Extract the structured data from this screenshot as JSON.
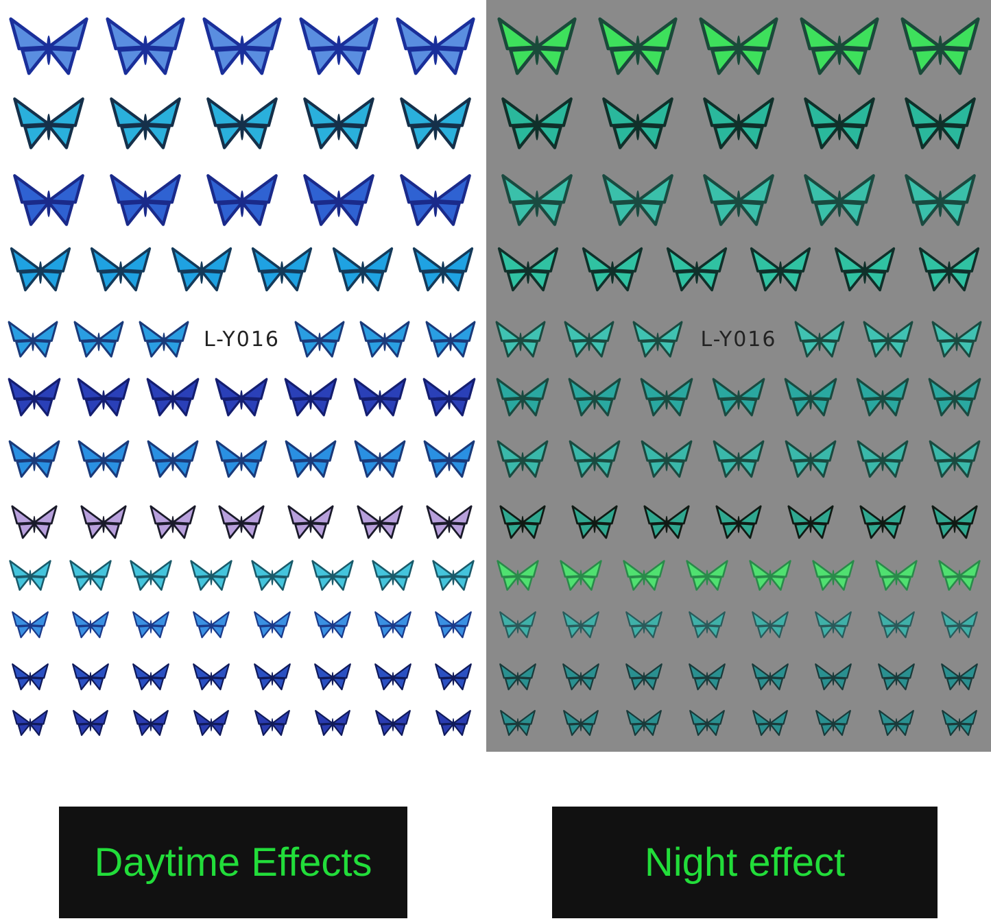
{
  "product_code": "L-Y016",
  "captions": {
    "day": "Daytime Effects",
    "night": "Night effect"
  },
  "colors": {
    "night_background": "#8a8a8a",
    "caption_background": "#111111",
    "caption_text": "#22dd3a"
  },
  "sheets": {
    "day": {
      "rows": [
        {
          "count": 5,
          "color": "#5a8ee0",
          "edge": "#1a2f9a"
        },
        {
          "count": 5,
          "color": "#2ab0dc",
          "edge": "#15304a"
        },
        {
          "count": 5,
          "color": "#2f62d2",
          "edge": "#1a2a8a"
        },
        {
          "count": 6,
          "color": "#1fa2e2",
          "edge": "#143a5a"
        },
        {
          "count": 6,
          "color": "#2a9ee2",
          "edge": "#1a3a7a",
          "has_code_label": true
        },
        {
          "count": 7,
          "color": "#2a40b8",
          "edge": "#141e70"
        },
        {
          "count": 7,
          "color": "#2a90e2",
          "edge": "#1a3a7a"
        },
        {
          "count": 7,
          "color": "#b8a0dc",
          "edge": "#1a1a2a"
        },
        {
          "count": 8,
          "color": "#44c4dc",
          "edge": "#1a5a6a"
        },
        {
          "count": 8,
          "color": "#3a90e2",
          "edge": "#1a3a8a"
        },
        {
          "count": 8,
          "color": "#2a50c2",
          "edge": "#101a5a"
        },
        {
          "count": 8,
          "color": "#2a3cb0",
          "edge": "#101a5a"
        }
      ]
    },
    "night": {
      "rows": [
        {
          "count": 5,
          "color": "#3ee05c",
          "edge": "#1a4a3a"
        },
        {
          "count": 5,
          "color": "#2ab89c",
          "edge": "#10302a"
        },
        {
          "count": 5,
          "color": "#3ac0aa",
          "edge": "#1a4a40"
        },
        {
          "count": 6,
          "color": "#30c2a2",
          "edge": "#10302a"
        },
        {
          "count": 6,
          "color": "#40c2b2",
          "edge": "#1a4a40",
          "has_code_label": true
        },
        {
          "count": 7,
          "color": "#2aa8a0",
          "edge": "#1a4a40"
        },
        {
          "count": 7,
          "color": "#3ab8aa",
          "edge": "#1a4a40"
        },
        {
          "count": 7,
          "color": "#30a890",
          "edge": "#101a14"
        },
        {
          "count": 8,
          "color": "#50e070",
          "edge": "#2a8a4a"
        },
        {
          "count": 8,
          "color": "#40b0a8",
          "edge": "#2a5a5a"
        },
        {
          "count": 8,
          "color": "#2a9090",
          "edge": "#1a3a3a"
        },
        {
          "count": 8,
          "color": "#2a9090",
          "edge": "#1a3a3a"
        }
      ]
    }
  }
}
